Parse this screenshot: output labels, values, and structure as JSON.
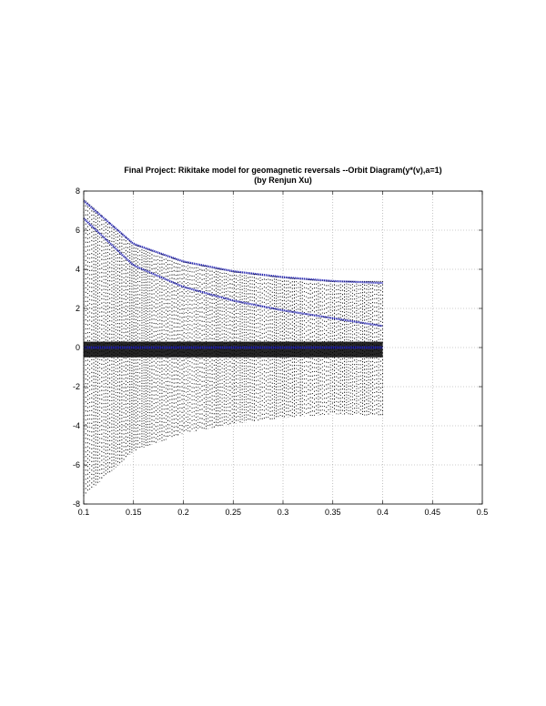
{
  "chart_data": {
    "type": "scatter",
    "title": "Final Project: Rikitake model for geomagnetic reversals --Orbit Diagram(y*(v),a=1)",
    "subtitle": "(by Renjun Xu)",
    "xlabel": "",
    "ylabel": "",
    "xlim": [
      0.1,
      0.5
    ],
    "ylim": [
      -8,
      8
    ],
    "x_ticks": [
      "0.1",
      "0.15",
      "0.2",
      "0.25",
      "0.3",
      "0.35",
      "0.4",
      "0.45",
      "0.5"
    ],
    "y_ticks": [
      "8",
      "6",
      "4",
      "2",
      "0",
      "-2",
      "-4",
      "-6",
      "-8"
    ],
    "grid": true,
    "v_range": [
      0.1,
      0.4
    ],
    "series": [
      {
        "role": "orbit points",
        "color": "#000000",
        "envelope_x": [
          0.1,
          0.15,
          0.2,
          0.25,
          0.3,
          0.35,
          0.4
        ],
        "envelope_upper": [
          7.6,
          5.3,
          4.4,
          3.9,
          3.6,
          3.4,
          3.4
        ],
        "envelope_lower": [
          -7.6,
          -5.3,
          -4.4,
          -3.9,
          -3.6,
          -3.4,
          -3.5
        ],
        "dense_band_upper": 0.3,
        "dense_band_lower": -0.5
      },
      {
        "role": "upper branch",
        "color": "#1f1fb4",
        "x": [
          0.1,
          0.15,
          0.2,
          0.25,
          0.3,
          0.35,
          0.4
        ],
        "y": [
          7.5,
          5.3,
          4.4,
          3.9,
          3.6,
          3.4,
          3.3
        ]
      },
      {
        "role": "middle branch",
        "color": "#1f1fb4",
        "x": [
          0.1,
          0.15,
          0.2,
          0.25,
          0.3,
          0.35,
          0.4
        ],
        "y": [
          6.6,
          4.2,
          3.1,
          2.4,
          1.9,
          1.5,
          1.1
        ]
      },
      {
        "role": "near-zero band",
        "color": "#1f1fb4",
        "x": [
          0.1,
          0.4
        ],
        "y": [
          0.0,
          0.0
        ]
      }
    ]
  }
}
